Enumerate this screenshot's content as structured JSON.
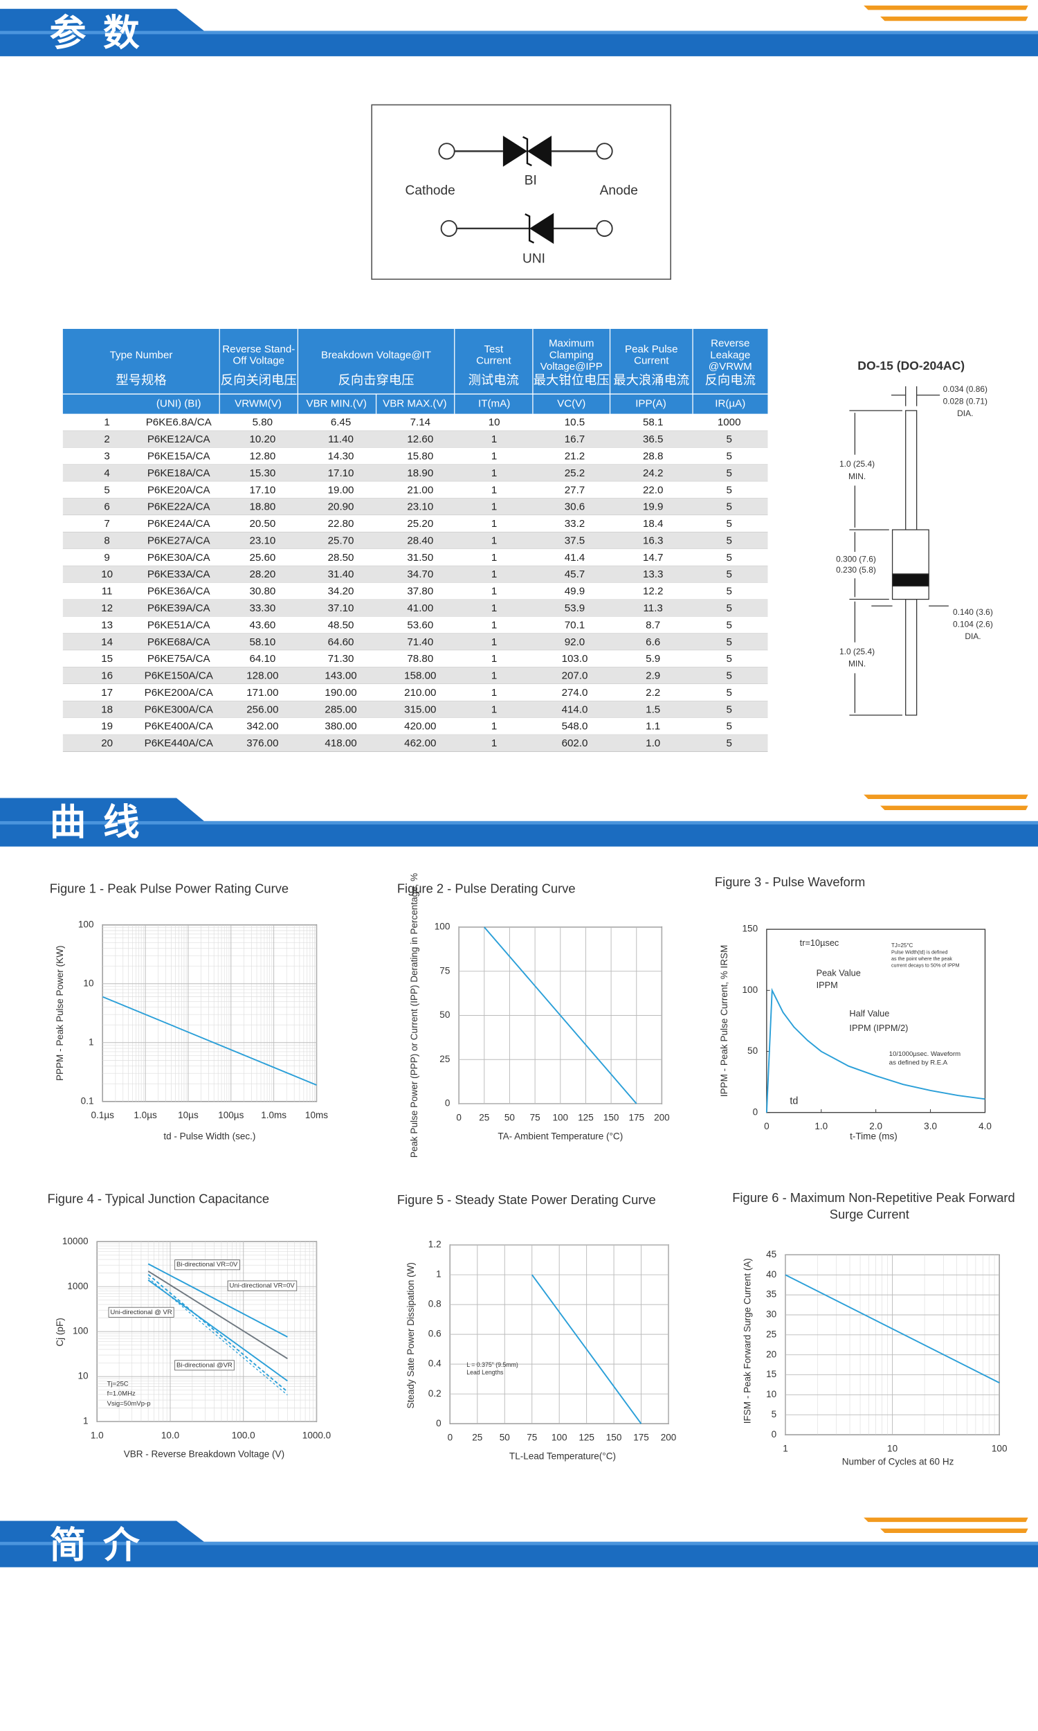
{
  "sections": [
    "参 数",
    "曲 线",
    "简 介"
  ],
  "symbol": {
    "cathode": "Cathode",
    "bi": "BI",
    "anode": "Anode",
    "uni": "UNI"
  },
  "table": {
    "header": [
      {
        "en": [
          "Type Number"
        ],
        "cn": "型号规格"
      },
      {
        "en": [
          "Reverse Stand-",
          "Off Voltage"
        ],
        "cn": "反向关闭电压"
      },
      {
        "en": [
          "Breakdown  Voltage@IT"
        ],
        "cn": "反向击穿电压"
      },
      {
        "en": [
          "Test",
          "Current"
        ],
        "cn": "测试电流"
      },
      {
        "en": [
          "Maximum",
          "Clamping",
          "Voltage@IPP"
        ],
        "cn": "最大钳位电压"
      },
      {
        "en": [
          "Peak Pulse",
          "Current"
        ],
        "cn": "最大浪涌电流"
      },
      {
        "en": [
          "Reverse",
          "Leakage",
          "@VRWM"
        ],
        "cn": "反向电流"
      }
    ],
    "subheader": [
      "(UNI)  (BI)",
      "VRWM(V)",
      "VBR MIN.(V)",
      "VBR MAX.(V)",
      "IT(mA)",
      "VC(V)",
      "IPP(A)",
      "IR(µA)"
    ],
    "rows": [
      [
        "1",
        "P6KE6.8A/CA",
        "5.80",
        "6.45",
        "7.14",
        "10",
        "10.5",
        "58.1",
        "1000"
      ],
      [
        "2",
        "P6KE12A/CA",
        "10.20",
        "11.40",
        "12.60",
        "1",
        "16.7",
        "36.5",
        "5"
      ],
      [
        "3",
        "P6KE15A/CA",
        "12.80",
        "14.30",
        "15.80",
        "1",
        "21.2",
        "28.8",
        "5"
      ],
      [
        "4",
        "P6KE18A/CA",
        "15.30",
        "17.10",
        "18.90",
        "1",
        "25.2",
        "24.2",
        "5"
      ],
      [
        "5",
        "P6KE20A/CA",
        "17.10",
        "19.00",
        "21.00",
        "1",
        "27.7",
        "22.0",
        "5"
      ],
      [
        "6",
        "P6KE22A/CA",
        "18.80",
        "20.90",
        "23.10",
        "1",
        "30.6",
        "19.9",
        "5"
      ],
      [
        "7",
        "P6KE24A/CA",
        "20.50",
        "22.80",
        "25.20",
        "1",
        "33.2",
        "18.4",
        "5"
      ],
      [
        "8",
        "P6KE27A/CA",
        "23.10",
        "25.70",
        "28.40",
        "1",
        "37.5",
        "16.3",
        "5"
      ],
      [
        "9",
        "P6KE30A/CA",
        "25.60",
        "28.50",
        "31.50",
        "1",
        "41.4",
        "14.7",
        "5"
      ],
      [
        "10",
        "P6KE33A/CA",
        "28.20",
        "31.40",
        "34.70",
        "1",
        "45.7",
        "13.3",
        "5"
      ],
      [
        "11",
        "P6KE36A/CA",
        "30.80",
        "34.20",
        "37.80",
        "1",
        "49.9",
        "12.2",
        "5"
      ],
      [
        "12",
        "P6KE39A/CA",
        "33.30",
        "37.10",
        "41.00",
        "1",
        "53.9",
        "11.3",
        "5"
      ],
      [
        "13",
        "P6KE51A/CA",
        "43.60",
        "48.50",
        "53.60",
        "1",
        "70.1",
        "8.7",
        "5"
      ],
      [
        "14",
        "P6KE68A/CA",
        "58.10",
        "64.60",
        "71.40",
        "1",
        "92.0",
        "6.6",
        "5"
      ],
      [
        "15",
        "P6KE75A/CA",
        "64.10",
        "71.30",
        "78.80",
        "1",
        "103.0",
        "5.9",
        "5"
      ],
      [
        "16",
        "P6KE150A/CA",
        "128.00",
        "143.00",
        "158.00",
        "1",
        "207.0",
        "2.9",
        "5"
      ],
      [
        "17",
        "P6KE200A/CA",
        "171.00",
        "190.00",
        "210.00",
        "1",
        "274.0",
        "2.2",
        "5"
      ],
      [
        "18",
        "P6KE300A/CA",
        "256.00",
        "285.00",
        "315.00",
        "1",
        "414.0",
        "1.5",
        "5"
      ],
      [
        "19",
        "P6KE400A/CA",
        "342.00",
        "380.00",
        "420.00",
        "1",
        "548.0",
        "1.1",
        "5"
      ],
      [
        "20",
        "P6KE440A/CA",
        "376.00",
        "418.00",
        "462.00",
        "1",
        "602.0",
        "1.0",
        "5"
      ]
    ]
  },
  "package": {
    "title": "DO-15 (DO-204AC)",
    "labels": [
      "0.034 (0.86)",
      "0.028 (0.71)",
      "DIA.",
      "1.0 (25.4)",
      "MIN.",
      "0.300 (7.6)",
      "0.230 (5.8)",
      "0.140 (3.6)",
      "0.104 (2.6)",
      "DIA.",
      "1.0 (25.4)",
      "MIN."
    ]
  },
  "figures": [
    {
      "type": "line",
      "title": [
        "Figure 1 - Peak Pulse Power Rating Curve"
      ],
      "xlabel": "td - Pulse Width (sec.)",
      "ylabel": "PPPM - Peak Pulse Power (KW)",
      "xlog": true,
      "ylog": true,
      "grid": true,
      "xlim": [
        0.1,
        10000
      ],
      "ylim": [
        0.1,
        100
      ],
      "xticks": [
        {
          "value": 0.1,
          "label": "0.1µs"
        },
        {
          "value": 1,
          "label": "1.0µs"
        },
        {
          "value": 10,
          "label": "10µs"
        },
        {
          "value": 100,
          "label": "100µs"
        },
        {
          "value": 1000,
          "label": "1.0ms"
        },
        {
          "value": 10000,
          "label": "10ms"
        }
      ],
      "yticks": [
        0.1,
        1,
        10,
        100
      ],
      "series": [
        {
          "color": "#2a9fd8",
          "x": [
            0.1,
            10000
          ],
          "values": [
            6,
            0.19
          ]
        }
      ]
    },
    {
      "type": "line",
      "title": [
        "Figure 2 - Pulse Derating Curve"
      ],
      "xlabel": "TA- Ambient Temperature (°C)",
      "ylabel": "Peak Pulse Power (PPP) or Current (IPP) Derating in Percentage, %",
      "grid": true,
      "xlim": [
        0,
        200
      ],
      "ylim": [
        0,
        100
      ],
      "xticks": [
        0,
        25,
        50,
        75,
        100,
        125,
        150,
        175,
        200
      ],
      "yticks": [
        0,
        25,
        50,
        75,
        100
      ],
      "series": [
        {
          "color": "#2a9fd8",
          "x": [
            25,
            175
          ],
          "values": [
            100,
            0
          ]
        }
      ]
    },
    {
      "type": "line",
      "title": [
        "Figure 3 - Pulse Waveform"
      ],
      "xlabel": "t-Time (ms)",
      "ylabel": "IPPM - Peak Pulse Current, % IRSM",
      "grid": false,
      "xlim": [
        0,
        4
      ],
      "ylim": [
        0,
        150
      ],
      "xticks": [
        0,
        {
          "value": 1,
          "label": "1.0"
        },
        {
          "value": 2,
          "label": "2.0"
        },
        {
          "value": 3,
          "label": "3.0"
        },
        {
          "value": 4,
          "label": "4.0"
        }
      ],
      "yticks": [
        0,
        50,
        100,
        150
      ],
      "annotations": [
        "tr=10µsec",
        "TJ=25°C",
        "Pulse Width(td) is defined",
        "as the point where the peak",
        "current decays to  50% of IPPM",
        "Peak Value",
        "IPPM",
        "Half Value",
        "IPPM (IPPM/2)",
        "10/1000µsec. Waveform",
        "as defined by R.E.A",
        "td"
      ],
      "series": [
        {
          "color": "#2a9fd8",
          "x": [
            0,
            0.1,
            0.3,
            0.5,
            0.75,
            1.0,
            1.5,
            2.0,
            2.5,
            3.0,
            3.5,
            4.0
          ],
          "values": [
            0,
            100,
            82,
            70,
            59,
            50,
            38,
            30,
            23,
            18,
            14,
            11
          ]
        }
      ]
    },
    {
      "type": "line",
      "title": [
        "Figure 4 - Typical Junction Capacitance"
      ],
      "xlabel": "VBR - Reverse Breakdown Voltage (V)",
      "ylabel": "Cj (pF)",
      "xlog": true,
      "ylog": true,
      "grid": true,
      "xlim": [
        1,
        1000
      ],
      "ylim": [
        1,
        10000
      ],
      "xticks": [
        {
          "value": 1,
          "label": "1.0"
        },
        {
          "value": 10,
          "label": "10.0"
        },
        {
          "value": 100,
          "label": "100.0"
        },
        {
          "value": 1000,
          "label": "1000.0"
        }
      ],
      "yticks": [
        1,
        10,
        100,
        1000,
        10000
      ],
      "annotations": [
        "Tj=25C",
        "f=1.0MHz",
        "Vsig=50mVp-p"
      ],
      "series": [
        {
          "name": "Bi-directional VR=0V",
          "color": "#2a9fd8",
          "x": [
            5,
            400
          ],
          "values": [
            3200,
            76
          ]
        },
        {
          "name": "Uni-directional VR=0V",
          "color": "#6f7880",
          "x": [
            5,
            400
          ],
          "values": [
            2200,
            25
          ]
        },
        {
          "name": "Uni-directional @ VR",
          "color": "#2a9fd8",
          "x": [
            5,
            400
          ],
          "values": [
            1400,
            8
          ]
        },
        {
          "name": "Bi-directional @VR",
          "color": "#2a9fd8",
          "dash": true,
          "x": [
            5,
            400
          ],
          "values": [
            1860,
            4.6
          ]
        }
      ]
    },
    {
      "type": "line",
      "title": [
        "Figure 5 - Steady State Power Derating Curve"
      ],
      "xlabel": "TL-Lead Temperature(°C)",
      "ylabel": "Steady Sate Power Dissipation (W)",
      "grid": true,
      "xlim": [
        0,
        200
      ],
      "ylim": [
        0,
        1.2
      ],
      "xticks": [
        0,
        25,
        50,
        75,
        100,
        125,
        150,
        175,
        200
      ],
      "yticks": [
        0,
        0.2,
        0.4,
        0.6,
        0.8,
        1,
        1.2
      ],
      "annotations": [
        "L = 0.375\" (9.5mm)",
        "Lead Lengths"
      ],
      "series": [
        {
          "color": "#2a9fd8",
          "x": [
            75,
            175
          ],
          "values": [
            1,
            0
          ]
        }
      ]
    },
    {
      "type": "line",
      "title": [
        "Figure 6 - Maximum Non-Repetitive Peak Forward",
        "Surge Current"
      ],
      "xlabel": "Number of Cycles at 60 Hz",
      "ylabel": "IFSM - Peak Forward Surge Current (A)",
      "xlog": true,
      "grid": true,
      "xlim": [
        1,
        100
      ],
      "ylim": [
        0,
        45
      ],
      "xticks": [
        1,
        10,
        100
      ],
      "yticks": [
        0,
        5,
        10,
        15,
        20,
        25,
        30,
        35,
        40,
        45
      ],
      "series": [
        {
          "color": "#2a9fd8",
          "x": [
            1,
            100
          ],
          "values": [
            40,
            13
          ]
        }
      ]
    }
  ]
}
